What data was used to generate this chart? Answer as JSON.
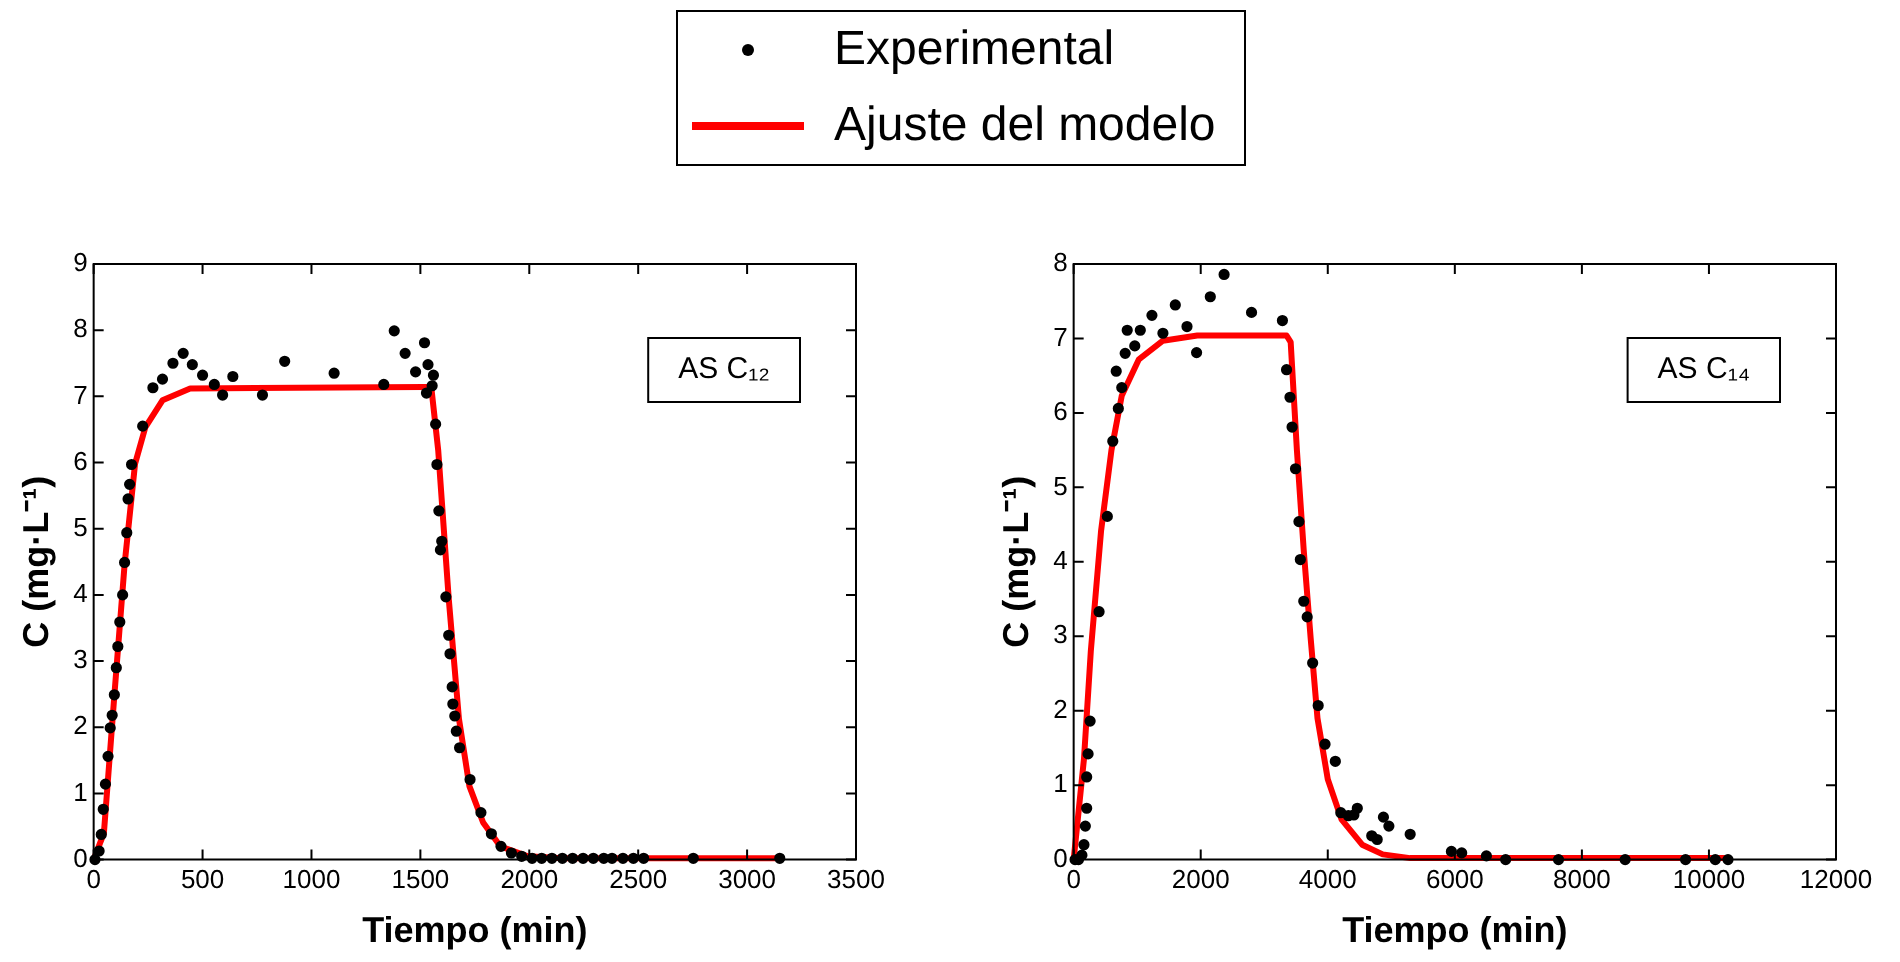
{
  "chart_data": [
    {
      "type": "scatter",
      "xlabel": "Tiempo (min)",
      "ylabel": "C (mg·L⁻¹)",
      "annotations": [
        "AS C₁₂"
      ],
      "legend": "top",
      "xlim": [
        0,
        3500
      ],
      "xticks": [
        0,
        500,
        1000,
        1500,
        2000,
        2500,
        3000,
        3500
      ],
      "ylim": [
        0,
        9
      ],
      "yticks": [
        0,
        1,
        2,
        3,
        4,
        5,
        6,
        7,
        8,
        9
      ],
      "series": [
        {
          "name": "Experimental",
          "type": "scatter",
          "marker": "circle",
          "color": "#000000",
          "x": [
            6,
            25,
            35,
            44,
            54,
            66,
            76,
            85,
            95,
            104,
            111,
            120,
            133,
            142,
            152,
            158,
            165,
            174,
            225,
            272,
            316,
            364,
            411,
            453,
            500,
            554,
            592,
            639,
            775,
            877,
            1104,
            1332,
            1380,
            1430,
            1478,
            1519,
            1535,
            1528,
            1554,
            1560,
            1570,
            1576,
            1585,
            1598,
            1592,
            1617,
            1630,
            1636,
            1646,
            1649,
            1658,
            1665,
            1680,
            1728,
            1778,
            1826,
            1870,
            1918,
            1965,
            2013,
            2057,
            2104,
            2152,
            2199,
            2247,
            2294,
            2342,
            2380,
            2430,
            2478,
            2525,
            2753,
            3150
          ],
          "values": [
            0,
            0.13,
            0.38,
            0.76,
            1.14,
            1.56,
            1.99,
            2.18,
            2.49,
            2.9,
            3.22,
            3.59,
            4.0,
            4.49,
            4.94,
            5.45,
            5.67,
            5.97,
            6.55,
            7.13,
            7.26,
            7.5,
            7.65,
            7.48,
            7.32,
            7.18,
            7.02,
            7.3,
            7.02,
            7.53,
            7.35,
            7.18,
            7.99,
            7.65,
            7.37,
            7.81,
            7.48,
            7.05,
            7.16,
            7.32,
            6.58,
            5.97,
            5.27,
            4.81,
            4.68,
            3.97,
            3.39,
            3.11,
            2.61,
            2.35,
            2.17,
            1.94,
            1.69,
            1.21,
            0.71,
            0.39,
            0.2,
            0.1,
            0.05,
            0.02,
            0.02,
            0.02,
            0.02,
            0.02,
            0.02,
            0.02,
            0.02,
            0.02,
            0.02,
            0.02,
            0.02,
            0.02,
            0.02
          ]
        },
        {
          "name": "Ajuste del modelo",
          "type": "line",
          "marker": "none",
          "color": "#ff0000",
          "x": [
            0,
            47,
            95,
            142,
            190,
            237,
            316,
            443,
            1519,
            1550,
            1582,
            1630,
            1677,
            1725,
            1788,
            1867,
            1994,
            2152,
            3150
          ],
          "values": [
            0,
            0.4,
            2.48,
            4.46,
            5.98,
            6.53,
            6.94,
            7.12,
            7.14,
            7.14,
            6.18,
            3.95,
            2.13,
            1.11,
            0.56,
            0.2,
            0.05,
            0.02,
            0.02
          ]
        }
      ]
    },
    {
      "type": "scatter",
      "xlabel": "Tiempo (min)",
      "ylabel": "C (mg·L⁻¹)",
      "annotations": [
        "AS C₁₄"
      ],
      "xlim": [
        0,
        12000
      ],
      "xticks": [
        0,
        2000,
        4000,
        6000,
        8000,
        10000,
        12000
      ],
      "ylim": [
        0,
        8
      ],
      "yticks": [
        0,
        1,
        2,
        3,
        4,
        5,
        6,
        7,
        8
      ],
      "series": [
        {
          "type": "scatter",
          "marker": "circle",
          "color": "#000000",
          "x": [
            22,
            76,
            130,
            162,
            184,
            205,
            205,
            227,
            259,
            400,
            530,
            616,
            703,
            757,
            670,
            811,
            843,
            962,
            1049,
            1232,
            1405,
            1600,
            1784,
            1935,
            2151,
            2368,
            2800,
            3286,
            3351,
            3405,
            3438,
            3492,
            3546,
            3568,
            3622,
            3676,
            3762,
            3849,
            3957,
            4119,
            4205,
            4324,
            4411,
            4465,
            4876,
            4962,
            4692,
            4778,
            5297,
            5946,
            6108,
            6497,
            6800,
            7632,
            8681,
            9632,
            10100,
            10300
          ],
          "values": [
            0,
            0,
            0.06,
            0.2,
            0.45,
            0.69,
            1.11,
            1.42,
            1.86,
            3.33,
            4.61,
            5.62,
            6.06,
            6.34,
            6.56,
            6.8,
            7.11,
            6.9,
            7.11,
            7.31,
            7.07,
            7.45,
            7.16,
            6.81,
            7.56,
            7.86,
            7.35,
            7.24,
            6.58,
            6.21,
            5.81,
            5.25,
            4.54,
            4.03,
            3.47,
            3.26,
            2.64,
            2.07,
            1.55,
            1.32,
            0.63,
            0.59,
            0.6,
            0.69,
            0.57,
            0.45,
            0.32,
            0.27,
            0.34,
            0.11,
            0.09,
            0.05,
            0,
            0,
            0,
            0,
            0,
            0
          ]
        },
        {
          "type": "line",
          "marker": "none",
          "color": "#ff0000",
          "x": [
            0,
            162,
            270,
            432,
            595,
            757,
            1027,
            1405,
            1946,
            3351,
            3416,
            3514,
            3622,
            3730,
            3838,
            4000,
            4216,
            4541,
            4865,
            5297,
            10300
          ],
          "values": [
            0,
            1.35,
            2.8,
            4.42,
            5.5,
            6.23,
            6.72,
            6.97,
            7.04,
            7.04,
            6.95,
            5.5,
            4.15,
            2.98,
            1.9,
            1.08,
            0.54,
            0.2,
            0.07,
            0.02,
            0.02
          ]
        }
      ]
    }
  ]
}
